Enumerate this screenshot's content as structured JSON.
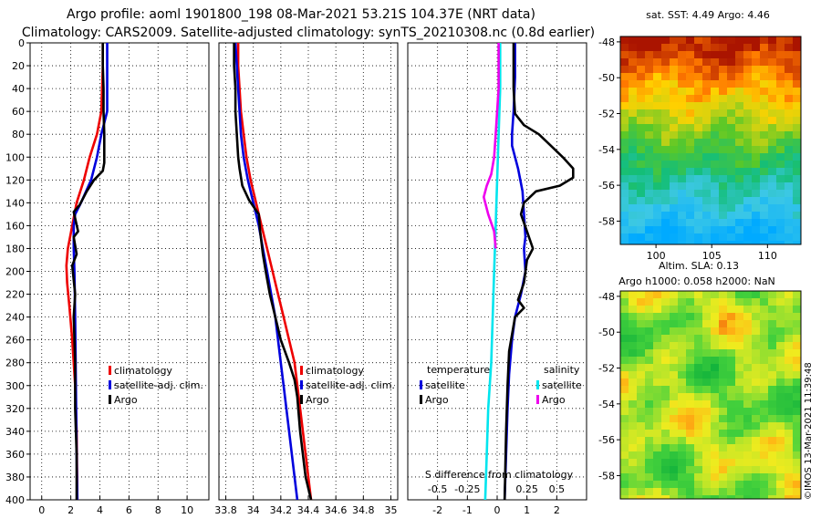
{
  "header": {
    "title_line1": "Argo profile: aoml 1901800_198 08-Mar-2021 53.21S 104.37E (NRT data)",
    "title_line2": "Climatology: CARS2009. Satellite-adjusted climatology: synTS_20210308.nc (0.8d earlier)"
  },
  "colors": {
    "climatology": "#ee0000",
    "satellite": "#0000dd",
    "argo": "#000000",
    "salinity_satellite": "#00e5ee",
    "salinity_argo": "#ee00ee"
  },
  "chart_data": [
    {
      "type": "line",
      "name": "temperature-profile",
      "xlabel": "",
      "ylabel": "",
      "xlim": [
        -0.8,
        11.5
      ],
      "ylim": [
        400,
        0
      ],
      "x_ticks": [
        "0",
        "2",
        "4",
        "6",
        "8",
        "10"
      ],
      "x_tick_values": [
        0,
        2,
        4,
        6,
        8,
        10
      ],
      "y_ticks": [
        "0",
        "20",
        "40",
        "60",
        "80",
        "100",
        "120",
        "140",
        "160",
        "180",
        "200",
        "220",
        "240",
        "260",
        "280",
        "300",
        "320",
        "340",
        "360",
        "380",
        "400"
      ],
      "grid": true,
      "legend": [
        "climatology",
        "satellite-adj. clim.",
        "Argo"
      ],
      "series": [
        {
          "name": "climatology",
          "color_key": "climatology",
          "points": [
            [
              4.2,
              0
            ],
            [
              4.2,
              20
            ],
            [
              4.15,
              40
            ],
            [
              4.1,
              60
            ],
            [
              3.8,
              80
            ],
            [
              3.3,
              100
            ],
            [
              2.9,
              120
            ],
            [
              2.4,
              140
            ],
            [
              2.1,
              160
            ],
            [
              1.8,
              180
            ],
            [
              1.7,
              195
            ],
            [
              1.75,
              210
            ],
            [
              1.9,
              230
            ],
            [
              2.1,
              260
            ],
            [
              2.3,
              300
            ],
            [
              2.4,
              340
            ],
            [
              2.45,
              400
            ]
          ]
        },
        {
          "name": "satellite-adj. clim.",
          "color_key": "satellite",
          "points": [
            [
              4.5,
              0
            ],
            [
              4.5,
              20
            ],
            [
              4.5,
              40
            ],
            [
              4.5,
              60
            ],
            [
              4.1,
              80
            ],
            [
              3.8,
              100
            ],
            [
              3.4,
              120
            ],
            [
              2.7,
              140
            ],
            [
              2.3,
              150
            ],
            [
              2.2,
              160
            ],
            [
              2.2,
              180
            ],
            [
              2.25,
              200
            ],
            [
              2.3,
              240
            ],
            [
              2.35,
              300
            ],
            [
              2.4,
              360
            ],
            [
              2.45,
              400
            ]
          ]
        },
        {
          "name": "Argo",
          "color_key": "argo",
          "points": [
            [
              4.2,
              0
            ],
            [
              4.2,
              20
            ],
            [
              4.25,
              40
            ],
            [
              4.25,
              60
            ],
            [
              4.3,
              80
            ],
            [
              4.3,
              105
            ],
            [
              4.2,
              112
            ],
            [
              3.6,
              120
            ],
            [
              3.1,
              130
            ],
            [
              2.6,
              142
            ],
            [
              2.2,
              148
            ],
            [
              2.5,
              165
            ],
            [
              2.2,
              170
            ],
            [
              2.4,
              185
            ],
            [
              2.1,
              195
            ],
            [
              2.3,
              220
            ],
            [
              2.2,
              240
            ],
            [
              2.3,
              280
            ],
            [
              2.3,
              320
            ],
            [
              2.4,
              360
            ],
            [
              2.4,
              400
            ]
          ]
        }
      ]
    },
    {
      "type": "line",
      "name": "salinity-profile",
      "xlim": [
        33.75,
        35.05
      ],
      "ylim": [
        400,
        0
      ],
      "x_ticks": [
        "33.8",
        "34",
        "34.2",
        "34.4",
        "34.6",
        "34.8",
        "35"
      ],
      "x_tick_values": [
        33.8,
        34.0,
        34.2,
        34.4,
        34.6,
        34.8,
        35.0
      ],
      "grid": true,
      "legend": [
        "climatology",
        "satellite-adj. clim.",
        "Argo"
      ],
      "series": [
        {
          "name": "climatology",
          "color_key": "climatology",
          "points": [
            [
              33.89,
              0
            ],
            [
              33.89,
              20
            ],
            [
              33.9,
              40
            ],
            [
              33.91,
              60
            ],
            [
              33.93,
              80
            ],
            [
              33.95,
              100
            ],
            [
              33.98,
              120
            ],
            [
              34.02,
              140
            ],
            [
              34.06,
              160
            ],
            [
              34.1,
              180
            ],
            [
              34.14,
              200
            ],
            [
              34.18,
              220
            ],
            [
              34.22,
              240
            ],
            [
              34.26,
              260
            ],
            [
              34.3,
              280
            ],
            [
              34.34,
              320
            ],
            [
              34.38,
              360
            ],
            [
              34.42,
              400
            ]
          ]
        },
        {
          "name": "satellite-adj. clim.",
          "color_key": "satellite",
          "points": [
            [
              33.87,
              0
            ],
            [
              33.88,
              20
            ],
            [
              33.89,
              40
            ],
            [
              33.9,
              60
            ],
            [
              33.91,
              80
            ],
            [
              33.93,
              100
            ],
            [
              33.96,
              120
            ],
            [
              34.0,
              140
            ],
            [
              34.04,
              160
            ],
            [
              34.07,
              180
            ],
            [
              34.1,
              200
            ],
            [
              34.13,
              220
            ],
            [
              34.16,
              240
            ],
            [
              34.18,
              260
            ],
            [
              34.2,
              280
            ],
            [
              34.22,
              300
            ],
            [
              34.24,
              320
            ],
            [
              34.26,
              340
            ],
            [
              34.28,
              360
            ],
            [
              34.3,
              380
            ],
            [
              34.32,
              400
            ]
          ]
        },
        {
          "name": "Argo",
          "color_key": "argo",
          "points": [
            [
              33.86,
              0
            ],
            [
              33.86,
              20
            ],
            [
              33.87,
              40
            ],
            [
              33.87,
              60
            ],
            [
              33.88,
              80
            ],
            [
              33.89,
              100
            ],
            [
              33.9,
              110
            ],
            [
              33.92,
              125
            ],
            [
              33.97,
              138
            ],
            [
              34.04,
              150
            ],
            [
              34.05,
              165
            ],
            [
              34.07,
              185
            ],
            [
              34.09,
              200
            ],
            [
              34.12,
              220
            ],
            [
              34.16,
              240
            ],
            [
              34.2,
              260
            ],
            [
              34.26,
              280
            ],
            [
              34.3,
              295
            ],
            [
              34.32,
              310
            ],
            [
              34.34,
              340
            ],
            [
              34.38,
              380
            ],
            [
              34.42,
              400
            ]
          ]
        }
      ]
    },
    {
      "type": "line",
      "name": "difference-from-climatology",
      "xlim": [
        -3.0,
        3.0
      ],
      "ylim": [
        400,
        0
      ],
      "x_ticks": [
        "-2",
        "-1",
        "0",
        "1",
        "2"
      ],
      "x_tick_values": [
        -2,
        -1,
        0,
        1,
        2
      ],
      "s_axis_title": "S difference from climatology",
      "s_ticks": [
        "-0.5",
        "-0.25",
        "0.25",
        "0.5"
      ],
      "s_tick_positions": [
        -2,
        -1,
        1,
        2
      ],
      "grid": true,
      "legend_temperature": {
        "title": "temperature",
        "items": [
          "satellite",
          "Argo"
        ]
      },
      "legend_salinity": {
        "title": "salinity",
        "items": [
          "satellite",
          "Argo"
        ]
      },
      "series": [
        {
          "name": "temperature satellite",
          "color_key": "satellite",
          "points": [
            [
              0.6,
              0
            ],
            [
              0.6,
              30
            ],
            [
              0.55,
              60
            ],
            [
              0.5,
              80
            ],
            [
              0.5,
              90
            ],
            [
              0.7,
              110
            ],
            [
              0.85,
              130
            ],
            [
              0.9,
              150
            ],
            [
              0.95,
              170
            ],
            [
              0.9,
              180
            ],
            [
              0.95,
              200
            ],
            [
              0.8,
              220
            ],
            [
              0.6,
              240
            ],
            [
              0.5,
              260
            ],
            [
              0.4,
              290
            ],
            [
              0.35,
              320
            ],
            [
              0.3,
              360
            ],
            [
              0.25,
              400
            ]
          ]
        },
        {
          "name": "temperature Argo",
          "color_key": "argo",
          "points": [
            [
              0.55,
              0
            ],
            [
              0.55,
              40
            ],
            [
              0.6,
              62
            ],
            [
              0.9,
              72
            ],
            [
              1.4,
              80
            ],
            [
              1.8,
              90
            ],
            [
              2.2,
              100
            ],
            [
              2.55,
              110
            ],
            [
              2.55,
              118
            ],
            [
              2.1,
              125
            ],
            [
              1.3,
              130
            ],
            [
              0.9,
              140
            ],
            [
              0.8,
              150
            ],
            [
              1.0,
              165
            ],
            [
              1.2,
              180
            ],
            [
              1.0,
              190
            ],
            [
              0.9,
              210
            ],
            [
              0.7,
              225
            ],
            [
              0.9,
              232
            ],
            [
              0.6,
              240
            ],
            [
              0.4,
              270
            ],
            [
              0.35,
              300
            ],
            [
              0.3,
              340
            ],
            [
              0.25,
              400
            ]
          ]
        },
        {
          "name": "salinity satellite",
          "color_key": "salinity_satellite",
          "points": [
            [
              0.1,
              0
            ],
            [
              0.1,
              40
            ],
            [
              0.05,
              80
            ],
            [
              0.0,
              120
            ],
            [
              -0.05,
              160
            ],
            [
              -0.1,
              200
            ],
            [
              -0.15,
              240
            ],
            [
              -0.2,
              280
            ],
            [
              -0.3,
              320
            ],
            [
              -0.35,
              360
            ],
            [
              -0.4,
              400
            ]
          ]
        },
        {
          "name": "salinity Argo",
          "color_key": "salinity_argo",
          "points": [
            [
              0.05,
              0
            ],
            [
              0.05,
              40
            ],
            [
              0.0,
              60
            ],
            [
              -0.05,
              80
            ],
            [
              -0.1,
              100
            ],
            [
              -0.2,
              115
            ],
            [
              -0.35,
              125
            ],
            [
              -0.45,
              135
            ],
            [
              -0.3,
              150
            ],
            [
              -0.1,
              165
            ],
            [
              -0.05,
              180
            ]
          ]
        }
      ]
    }
  ],
  "maps": {
    "sst": {
      "title": "sat. SST: 4.49 Argo: 4.46",
      "lat_ticks": [
        "-48",
        "-50",
        "-52",
        "-54",
        "-56",
        "-58"
      ],
      "lat_values": [
        -48,
        -50,
        -52,
        -54,
        -56,
        -58
      ],
      "lon_ticks": [
        "100",
        "105",
        "110"
      ],
      "lon_values": [
        100,
        105,
        110
      ],
      "lat_range": [
        -59.3,
        -47.7
      ],
      "lon_range": [
        96.8,
        113.0
      ]
    },
    "sla": {
      "title_line1": "Altim. SLA: 0.13",
      "title_line2": "Argo h1000: 0.058 h2000: NaN",
      "lat_ticks": [
        "-48",
        "-50",
        "-52",
        "-54",
        "-56",
        "-58"
      ],
      "lat_values": [
        -48,
        -50,
        -52,
        -54,
        -56,
        -58
      ],
      "lat_range": [
        -59.3,
        -47.7
      ]
    },
    "credit": "©IMOS 13-Mar-2021 11:39:48"
  }
}
